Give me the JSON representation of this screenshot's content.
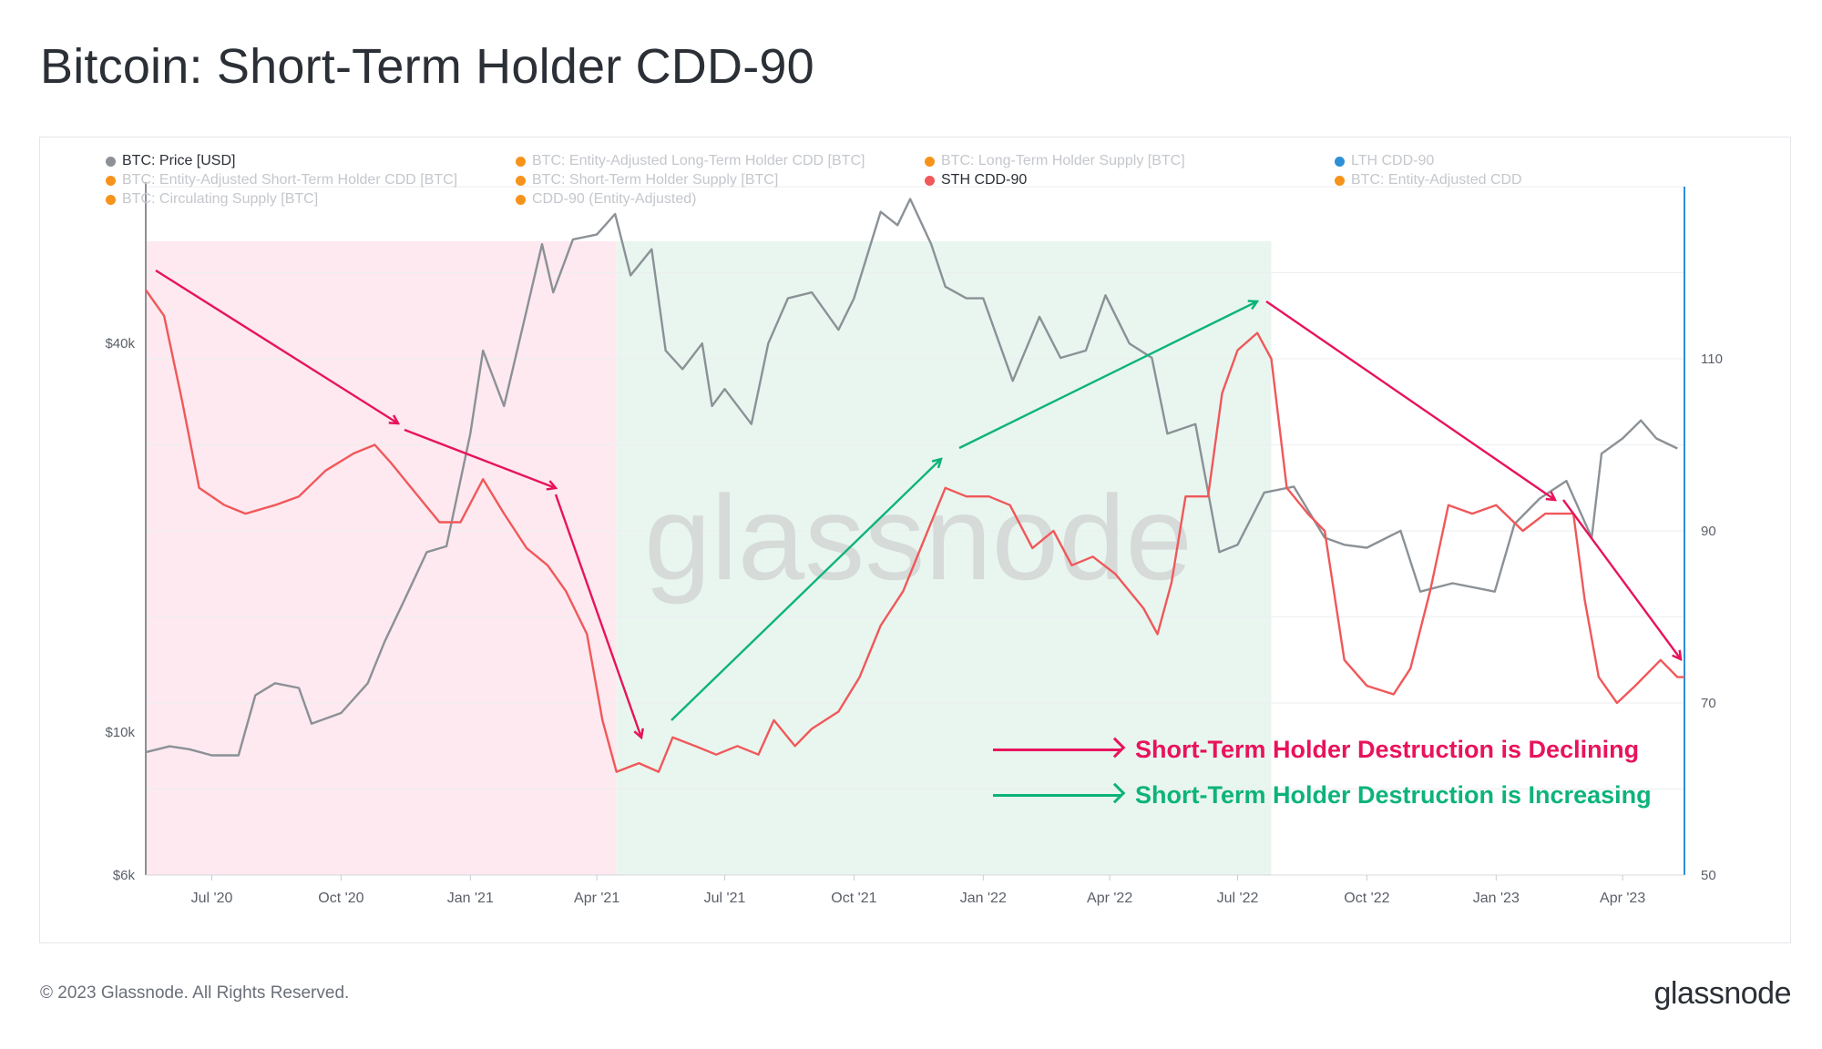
{
  "title": "Bitcoin: Short-Term Holder CDD-90",
  "legend": [
    {
      "label": "BTC: Price [USD]",
      "color": "#8b9196",
      "active": true
    },
    {
      "label": "BTC: Entity-Adjusted Long-Term Holder CDD [BTC]",
      "color": "#f7931a",
      "active": false
    },
    {
      "label": "BTC: Long-Term Holder Supply [BTC]",
      "color": "#f7931a",
      "active": false
    },
    {
      "label": "LTH CDD-90",
      "color": "#2d8fd5",
      "active": false
    },
    {
      "label": "BTC: Entity-Adjusted Short-Term Holder CDD [BTC]",
      "color": "#f7931a",
      "active": false
    },
    {
      "label": "BTC: Short-Term Holder Supply [BTC]",
      "color": "#f7931a",
      "active": false
    },
    {
      "label": "STH CDD-90",
      "color": "#f0585a",
      "active": true
    },
    {
      "label": "BTC: Entity-Adjusted CDD",
      "color": "#f7931a",
      "active": false
    },
    {
      "label": "BTC: Circulating Supply [BTC]",
      "color": "#f7931a",
      "active": false
    },
    {
      "label": "CDD-90 (Entity-Adjusted)",
      "color": "#f7931a",
      "active": false
    }
  ],
  "annotations": {
    "declining": {
      "label": "Short-Term Holder Destruction is Declining",
      "color": "#e8135c"
    },
    "increasing": {
      "label": "Short-Term Holder Destruction is Increasing",
      "color": "#0db37a"
    }
  },
  "watermark": "glassnode",
  "footer": {
    "copyright": "© 2023 Glassnode. All Rights Reserved.",
    "brand": "glassnode"
  },
  "chart_data": {
    "type": "line",
    "x_tick_labels": [
      "Jul '20",
      "Oct '20",
      "Jan '21",
      "Apr '21",
      "Jul '21",
      "Oct '21",
      "Jan '22",
      "Apr '22",
      "Jul '22",
      "Oct '22",
      "Jan '23",
      "Apr '23"
    ],
    "x_range": [
      "2020-05-15",
      "2023-05-15"
    ],
    "y_left": {
      "label": "",
      "scale": "log",
      "range": [
        6000,
        70000
      ],
      "tick_values": [
        6000,
        10000,
        40000
      ],
      "tick_labels": [
        "$6k",
        "$10k",
        "$40k"
      ]
    },
    "y_right": {
      "label": "",
      "range": [
        50,
        130
      ],
      "tick_values": [
        50,
        70,
        90,
        110
      ],
      "tick_labels": [
        "50",
        "70",
        "90",
        "110"
      ]
    },
    "shaded_regions": [
      {
        "start": "2020-05-15",
        "end": "2021-04-15",
        "color": "#fde9ef",
        "meaning": "declining"
      },
      {
        "start": "2021-04-15",
        "end": "2022-07-25",
        "color": "#e8f6ef",
        "meaning": "increasing"
      }
    ],
    "series": [
      {
        "name": "BTC: Price [USD]",
        "axis": "left",
        "color": "#8b9196",
        "points": [
          [
            "2020-05-15",
            9300
          ],
          [
            "2020-06-01",
            9500
          ],
          [
            "2020-06-15",
            9400
          ],
          [
            "2020-07-01",
            9200
          ],
          [
            "2020-07-20",
            9200
          ],
          [
            "2020-08-01",
            11400
          ],
          [
            "2020-08-15",
            11900
          ],
          [
            "2020-09-01",
            11700
          ],
          [
            "2020-09-10",
            10300
          ],
          [
            "2020-10-01",
            10700
          ],
          [
            "2020-10-20",
            11900
          ],
          [
            "2020-11-01",
            13800
          ],
          [
            "2020-11-15",
            16000
          ],
          [
            "2020-12-01",
            19000
          ],
          [
            "2020-12-15",
            19400
          ],
          [
            "2021-01-01",
            29000
          ],
          [
            "2021-01-10",
            39000
          ],
          [
            "2021-01-25",
            32000
          ],
          [
            "2021-02-10",
            45000
          ],
          [
            "2021-02-21",
            57000
          ],
          [
            "2021-03-01",
            48000
          ],
          [
            "2021-03-15",
            58000
          ],
          [
            "2021-04-01",
            59000
          ],
          [
            "2021-04-14",
            63500
          ],
          [
            "2021-04-25",
            51000
          ],
          [
            "2021-05-10",
            56000
          ],
          [
            "2021-05-20",
            39000
          ],
          [
            "2021-06-01",
            36500
          ],
          [
            "2021-06-15",
            40000
          ],
          [
            "2021-06-22",
            32000
          ],
          [
            "2021-07-01",
            34000
          ],
          [
            "2021-07-20",
            30000
          ],
          [
            "2021-08-01",
            40000
          ],
          [
            "2021-08-15",
            47000
          ],
          [
            "2021-09-01",
            48000
          ],
          [
            "2021-09-20",
            42000
          ],
          [
            "2021-10-01",
            47000
          ],
          [
            "2021-10-20",
            64000
          ],
          [
            "2021-11-01",
            61000
          ],
          [
            "2021-11-10",
            67000
          ],
          [
            "2021-11-25",
            57000
          ],
          [
            "2021-12-05",
            49000
          ],
          [
            "2021-12-20",
            47000
          ],
          [
            "2022-01-01",
            47000
          ],
          [
            "2022-01-22",
            35000
          ],
          [
            "2022-02-10",
            44000
          ],
          [
            "2022-02-25",
            38000
          ],
          [
            "2022-03-15",
            39000
          ],
          [
            "2022-03-29",
            47500
          ],
          [
            "2022-04-15",
            40000
          ],
          [
            "2022-05-01",
            38000
          ],
          [
            "2022-05-12",
            29000
          ],
          [
            "2022-06-01",
            30000
          ],
          [
            "2022-06-18",
            19000
          ],
          [
            "2022-07-01",
            19500
          ],
          [
            "2022-07-20",
            23500
          ],
          [
            "2022-08-10",
            24000
          ],
          [
            "2022-09-01",
            20000
          ],
          [
            "2022-09-15",
            19500
          ],
          [
            "2022-10-01",
            19300
          ],
          [
            "2022-10-25",
            20500
          ],
          [
            "2022-11-08",
            16500
          ],
          [
            "2022-12-01",
            17000
          ],
          [
            "2022-12-31",
            16500
          ],
          [
            "2023-01-14",
            21000
          ],
          [
            "2023-02-01",
            23000
          ],
          [
            "2023-02-20",
            24500
          ],
          [
            "2023-03-10",
            20000
          ],
          [
            "2023-03-17",
            27000
          ],
          [
            "2023-04-01",
            28500
          ],
          [
            "2023-04-14",
            30400
          ],
          [
            "2023-04-25",
            28500
          ],
          [
            "2023-05-10",
            27500
          ]
        ]
      },
      {
        "name": "STH CDD-90",
        "axis": "right",
        "color": "#f0585a",
        "points": [
          [
            "2020-05-15",
            118
          ],
          [
            "2020-05-28",
            115
          ],
          [
            "2020-06-10",
            105
          ],
          [
            "2020-06-22",
            95
          ],
          [
            "2020-07-10",
            93
          ],
          [
            "2020-07-25",
            92
          ],
          [
            "2020-08-15",
            93
          ],
          [
            "2020-09-01",
            94
          ],
          [
            "2020-09-20",
            97
          ],
          [
            "2020-10-10",
            99
          ],
          [
            "2020-10-25",
            100
          ],
          [
            "2020-11-05",
            98
          ],
          [
            "2020-11-20",
            95
          ],
          [
            "2020-12-10",
            91
          ],
          [
            "2020-12-25",
            91
          ],
          [
            "2021-01-10",
            96
          ],
          [
            "2021-01-25",
            92
          ],
          [
            "2021-02-10",
            88
          ],
          [
            "2021-02-25",
            86
          ],
          [
            "2021-03-10",
            83
          ],
          [
            "2021-03-25",
            78
          ],
          [
            "2021-04-05",
            68
          ],
          [
            "2021-04-15",
            62
          ],
          [
            "2021-05-01",
            63
          ],
          [
            "2021-05-15",
            62
          ],
          [
            "2021-05-25",
            66
          ],
          [
            "2021-06-10",
            65
          ],
          [
            "2021-06-25",
            64
          ],
          [
            "2021-07-10",
            65
          ],
          [
            "2021-07-25",
            64
          ],
          [
            "2021-08-05",
            68
          ],
          [
            "2021-08-20",
            65
          ],
          [
            "2021-09-01",
            67
          ],
          [
            "2021-09-20",
            69
          ],
          [
            "2021-10-05",
            73
          ],
          [
            "2021-10-20",
            79
          ],
          [
            "2021-11-05",
            83
          ],
          [
            "2021-11-20",
            89
          ],
          [
            "2021-12-05",
            95
          ],
          [
            "2021-12-20",
            94
          ],
          [
            "2022-01-05",
            94
          ],
          [
            "2022-01-20",
            93
          ],
          [
            "2022-02-05",
            88
          ],
          [
            "2022-02-20",
            90
          ],
          [
            "2022-03-05",
            86
          ],
          [
            "2022-03-20",
            87
          ],
          [
            "2022-04-05",
            85
          ],
          [
            "2022-04-25",
            81
          ],
          [
            "2022-05-05",
            78
          ],
          [
            "2022-05-15",
            84
          ],
          [
            "2022-05-25",
            94
          ],
          [
            "2022-06-10",
            94
          ],
          [
            "2022-06-20",
            106
          ],
          [
            "2022-07-01",
            111
          ],
          [
            "2022-07-15",
            113
          ],
          [
            "2022-07-25",
            110
          ],
          [
            "2022-08-05",
            95
          ],
          [
            "2022-08-20",
            92
          ],
          [
            "2022-09-01",
            90
          ],
          [
            "2022-09-15",
            75
          ],
          [
            "2022-10-01",
            72
          ],
          [
            "2022-10-20",
            71
          ],
          [
            "2022-11-01",
            74
          ],
          [
            "2022-11-15",
            83
          ],
          [
            "2022-11-28",
            93
          ],
          [
            "2022-12-15",
            92
          ],
          [
            "2023-01-01",
            93
          ],
          [
            "2023-01-20",
            90
          ],
          [
            "2023-02-05",
            92
          ],
          [
            "2023-02-25",
            92
          ],
          [
            "2023-03-05",
            82
          ],
          [
            "2023-03-15",
            73
          ],
          [
            "2023-03-28",
            70
          ],
          [
            "2023-04-10",
            72
          ],
          [
            "2023-04-28",
            75
          ],
          [
            "2023-05-10",
            73
          ],
          [
            "2023-05-15",
            73
          ]
        ]
      }
    ]
  }
}
